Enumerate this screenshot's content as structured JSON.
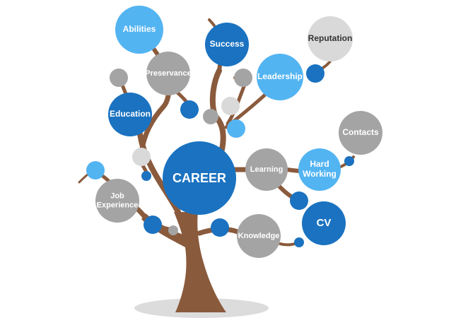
{
  "colors": {
    "background": "#ffffff",
    "trunk": "#8a5a3c",
    "ground_shadow": "#d9d9d9",
    "dark_blue": "#1a72c0",
    "light_blue": "#53b4f2",
    "gray": "#a4a4a4",
    "light_gray": "#d9d9d9",
    "label_white": "#ffffff",
    "label_dark": "#333333"
  },
  "center": {
    "label": "CAREER"
  },
  "bubbles": [
    {
      "key": "abilities",
      "label": "Abilities",
      "style": "light_blue"
    },
    {
      "key": "success",
      "label": "Success",
      "style": "dark_blue"
    },
    {
      "key": "reputation",
      "label": "Reputation",
      "style": "light_gray"
    },
    {
      "key": "preservance",
      "label": "Preservance",
      "style": "gray"
    },
    {
      "key": "leadership",
      "label": "Leadership",
      "style": "light_blue"
    },
    {
      "key": "education",
      "label": "Education",
      "style": "dark_blue"
    },
    {
      "key": "contacts",
      "label": "Contacts",
      "style": "gray"
    },
    {
      "key": "learning",
      "label": "Learning",
      "style": "gray"
    },
    {
      "key": "hard-working",
      "label": "Hard\nWorking",
      "style": "light_blue"
    },
    {
      "key": "job-experience",
      "label": "Job\nExperience",
      "style": "gray"
    },
    {
      "key": "cv",
      "label": "CV",
      "style": "dark_blue"
    },
    {
      "key": "knowledge",
      "label": "Knowledge",
      "style": "gray"
    }
  ]
}
